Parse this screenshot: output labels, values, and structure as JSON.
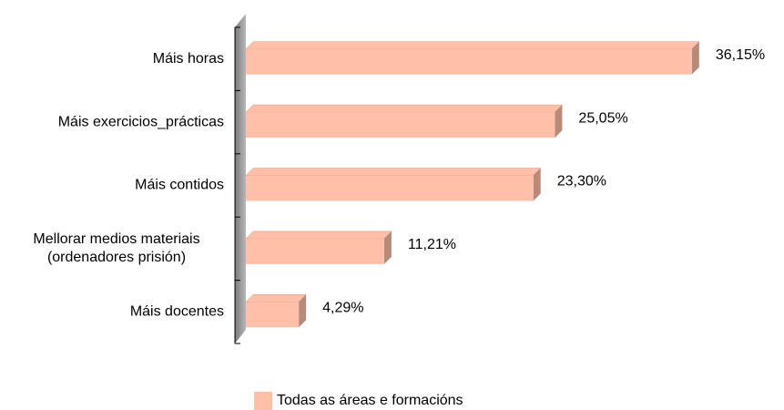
{
  "chart_data": {
    "type": "bar3d_horizontal",
    "categories": [
      "Máis horas",
      "Máis exercicios_prácticas",
      "Máis contidos",
      "Mellorar medios materiais (ordenadores prisión)",
      "Máis docentes"
    ],
    "series": [
      {
        "name": "Todas as áreas e formacións",
        "color": "#ffbfa8",
        "values": [
          36.15,
          25.05,
          23.3,
          11.21,
          4.29
        ],
        "value_labels": [
          "36,15%",
          "25,05%",
          "23,30%",
          "11,21%",
          "4,29%"
        ]
      }
    ],
    "xlim": [
      0,
      40
    ],
    "legend": "bottom"
  }
}
